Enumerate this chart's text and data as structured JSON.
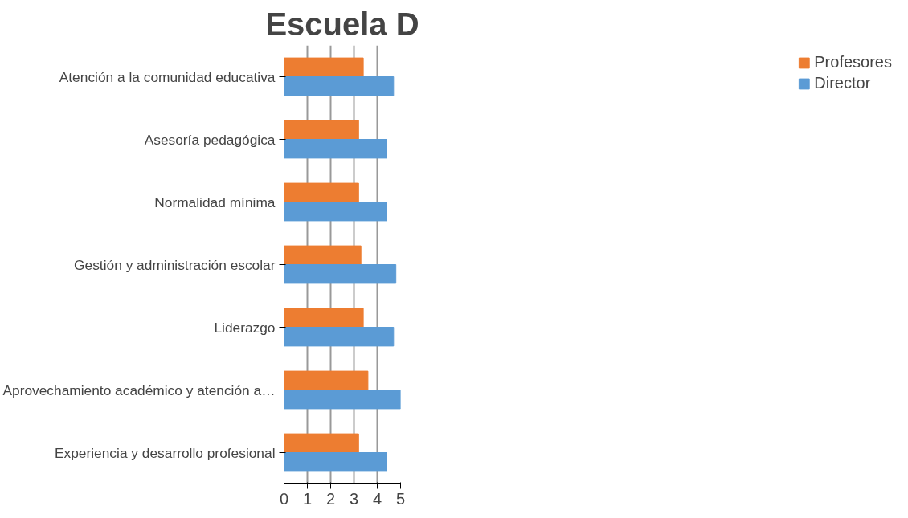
{
  "chart_data": {
    "type": "bar",
    "orientation": "horizontal",
    "title": "Escuela D",
    "categories": [
      "Atención a la comunidad educativa",
      "Asesoría pedagógica",
      "Normalidad mínima",
      "Gestión y administración escolar",
      "Liderazgo",
      "Aprovechamiento académico y atención a…",
      "Experiencia y desarrollo profesional"
    ],
    "series": [
      {
        "name": "Profesores",
        "color": "#ed7d31",
        "values": [
          3.4,
          3.2,
          3.2,
          3.3,
          3.4,
          3.6,
          3.2
        ]
      },
      {
        "name": "Director",
        "color": "#5b9bd5",
        "values": [
          4.7,
          4.4,
          4.4,
          4.8,
          4.7,
          5.0,
          4.4
        ]
      }
    ],
    "xlim": [
      0,
      5
    ],
    "xticks": [
      0,
      1,
      2,
      3,
      4,
      5
    ],
    "grid": "x",
    "legend": "right"
  }
}
